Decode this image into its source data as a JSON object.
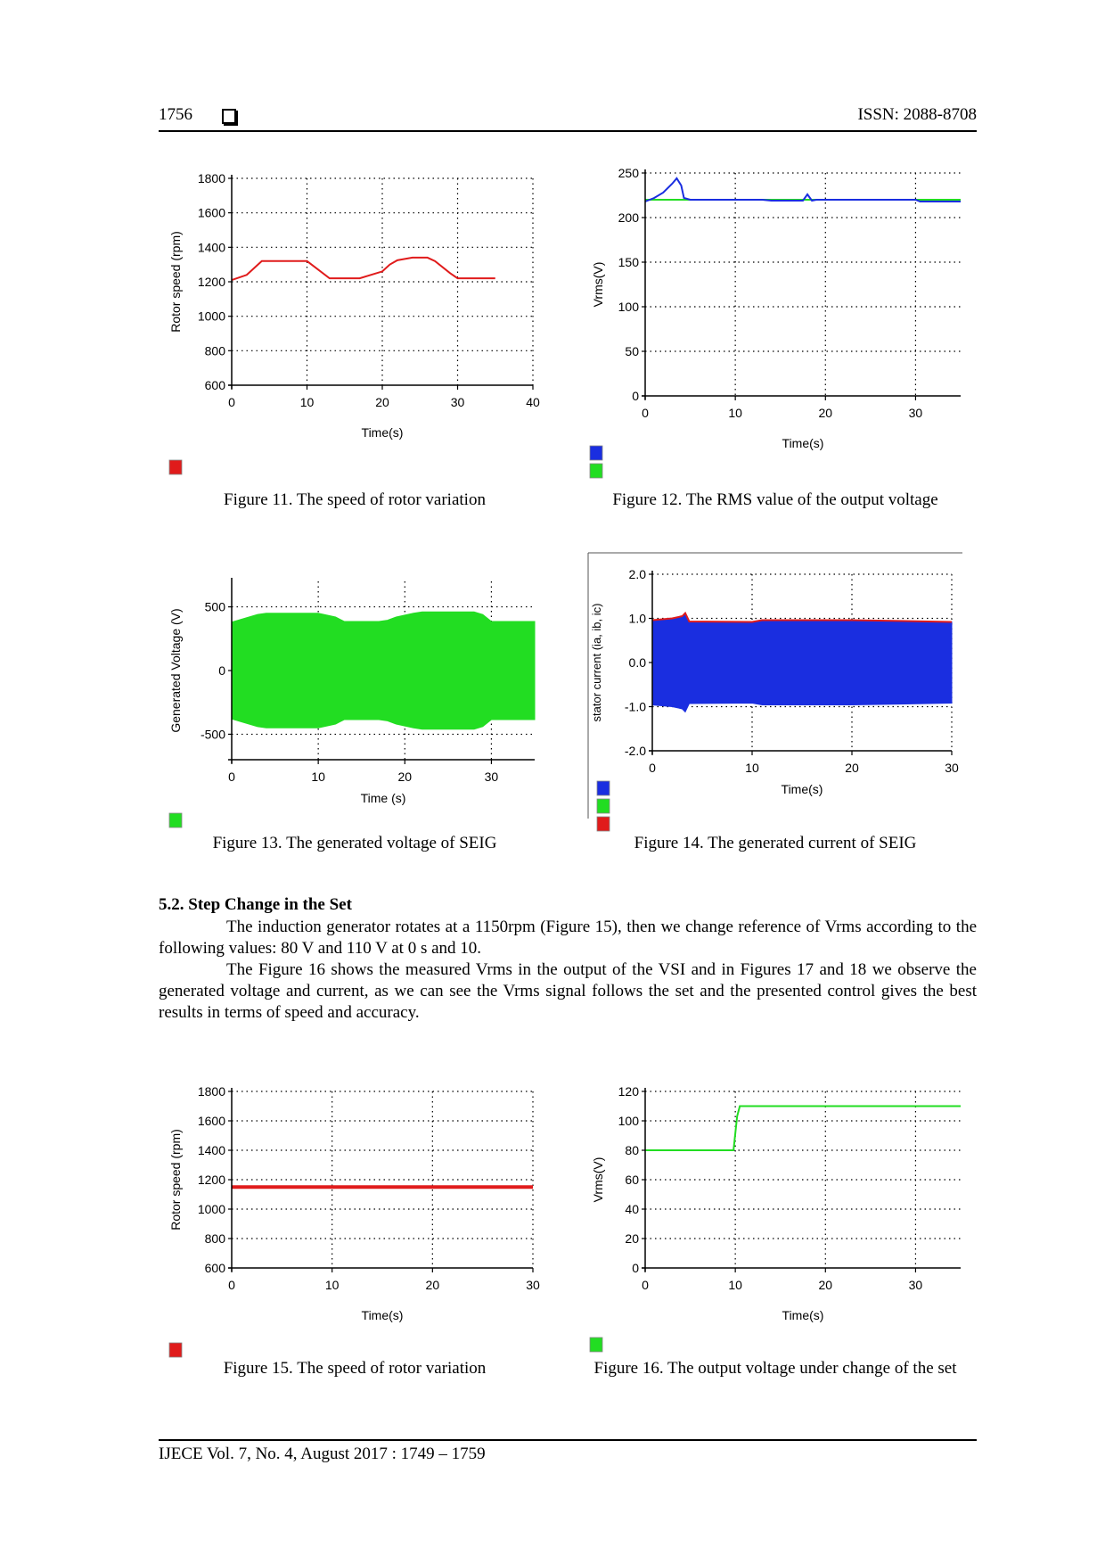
{
  "header": {
    "page_number": "1756",
    "issn": "ISSN: 2088-8708"
  },
  "chart_data": [
    {
      "id": "fig11",
      "type": "line",
      "ylabel": "Rotor speed (rpm)",
      "xlabel": "Time(s)",
      "xlim": [
        0,
        40
      ],
      "ylim": [
        600,
        1800
      ],
      "xticks": [
        0,
        10,
        20,
        30,
        40
      ],
      "yticks": [
        600,
        800,
        1000,
        1200,
        1400,
        1600,
        1800
      ],
      "legend_colors": [
        "#e01b1b"
      ],
      "series": [
        {
          "color": "#e01b1b",
          "x": [
            0,
            2,
            4,
            10,
            13,
            17,
            20,
            21,
            22,
            24,
            26,
            27,
            29,
            30,
            35
          ],
          "y": [
            1210,
            1240,
            1320,
            1320,
            1220,
            1220,
            1260,
            1300,
            1325,
            1340,
            1340,
            1320,
            1250,
            1220,
            1220
          ]
        }
      ],
      "caption": "Figure 11. The speed of rotor variation"
    },
    {
      "id": "fig12",
      "type": "line",
      "ylabel": "Vrms(V)",
      "xlabel": "Time(s)",
      "xlim": [
        0,
        35
      ],
      "ylim": [
        0,
        250
      ],
      "xticks": [
        0,
        10,
        20,
        30
      ],
      "yticks": [
        0,
        50,
        100,
        150,
        200,
        250
      ],
      "legend_colors": [
        "#1a2ee0",
        "#22dd22"
      ],
      "series": [
        {
          "color": "#22dd22",
          "x": [
            0,
            35
          ],
          "y": [
            220,
            220
          ]
        },
        {
          "color": "#1a2ee0",
          "x": [
            0,
            1,
            2,
            3,
            3.5,
            4,
            4.3,
            5,
            13,
            14,
            17.5,
            18,
            18.5,
            19,
            30,
            30.5,
            35
          ],
          "y": [
            218,
            222,
            228,
            238,
            244,
            236,
            222,
            220,
            220,
            219,
            219,
            226,
            219,
            220,
            220,
            218,
            218
          ]
        }
      ],
      "caption": "Figure 12. The RMS value of the output voltage"
    },
    {
      "id": "fig13",
      "type": "area",
      "ylabel": "Generated Voltage (V)",
      "xlabel": "Time (s)",
      "xlim": [
        0,
        35
      ],
      "ylim": [
        -700,
        700
      ],
      "xticks": [
        0,
        10,
        20,
        30
      ],
      "yticks": [
        -500,
        0,
        500
      ],
      "legend_colors": [
        "#22dd22"
      ],
      "series": [
        {
          "color": "#22dd22",
          "x": [
            0,
            1,
            3,
            4,
            10,
            12,
            13,
            17,
            18,
            19,
            21,
            22,
            28,
            29,
            30,
            35
          ],
          "y": [
            380,
            400,
            440,
            450,
            450,
            420,
            385,
            385,
            395,
            420,
            450,
            460,
            460,
            440,
            385,
            385
          ]
        }
      ],
      "caption": "Figure 13. The generated voltage of SEIG"
    },
    {
      "id": "fig14",
      "type": "area",
      "ylabel": "stator current (ia, ib, ic)",
      "xlabel": "Time(s)",
      "xlim": [
        0,
        30
      ],
      "ylim": [
        -2.0,
        2.0
      ],
      "xticks": [
        0,
        10,
        20,
        30
      ],
      "yticks": [
        -2.0,
        -1.0,
        0.0,
        1.0,
        2.0
      ],
      "ytick_labels": [
        "-2.0",
        "-1.0",
        "0.0",
        "1.0",
        "2.0"
      ],
      "legend_colors": [
        "#1a2ee0",
        "#22dd22",
        "#e01b1b"
      ],
      "series": [
        {
          "color": "#1a2ee0",
          "x": [
            0,
            2,
            3,
            3.3,
            3.7,
            10,
            11,
            20,
            30
          ],
          "y": [
            0.96,
            1.0,
            1.05,
            1.12,
            0.93,
            0.92,
            0.96,
            0.96,
            0.92
          ]
        }
      ],
      "caption": "Figure 14. The generated current of SEIG"
    },
    {
      "id": "fig15",
      "type": "line",
      "ylabel": "Rotor speed (rpm)",
      "xlabel": "Time(s)",
      "xlim": [
        0,
        30
      ],
      "ylim": [
        600,
        1800
      ],
      "xticks": [
        0,
        10,
        20,
        30
      ],
      "yticks": [
        600,
        800,
        1000,
        1200,
        1400,
        1600,
        1800
      ],
      "legend_colors": [
        "#e01b1b"
      ],
      "series": [
        {
          "color": "#e01b1b",
          "x": [
            0,
            30
          ],
          "y": [
            1150,
            1150
          ]
        }
      ],
      "caption": "Figure 15. The speed of rotor variation"
    },
    {
      "id": "fig16",
      "type": "line",
      "ylabel": "Vrms(V)",
      "xlabel": "Time(s)",
      "xlim": [
        0,
        35
      ],
      "ylim": [
        0,
        120
      ],
      "xticks": [
        0,
        10,
        20,
        30
      ],
      "yticks": [
        0,
        20,
        40,
        60,
        80,
        100,
        120
      ],
      "legend_colors": [
        "#22dd22"
      ],
      "series": [
        {
          "color": "#22dd22",
          "x": [
            0,
            9.8,
            10.2,
            10.5,
            35
          ],
          "y": [
            80,
            80,
            103,
            110,
            110
          ]
        }
      ],
      "caption": "Figure 16. The output voltage under change of the set"
    }
  ],
  "section": {
    "title": "5.2.   Step Change in the Set",
    "paragraph1": "The induction generator rotates at a 1150rpm (Figure 15), then we change reference of Vrms according to the following values: 80 V and 110 V at 0 s and 10.",
    "paragraph2": "The Figure 16 shows the measured Vrms in the output of the VSI and in Figures 17 and 18 we observe the generated voltage and current, as we can see the Vrms signal follows the set and the presented control gives the best results in terms of speed and accuracy."
  },
  "footer": {
    "text": "IJECE  Vol. 7, No. 4, August 2017 :  1749 – 1759"
  }
}
